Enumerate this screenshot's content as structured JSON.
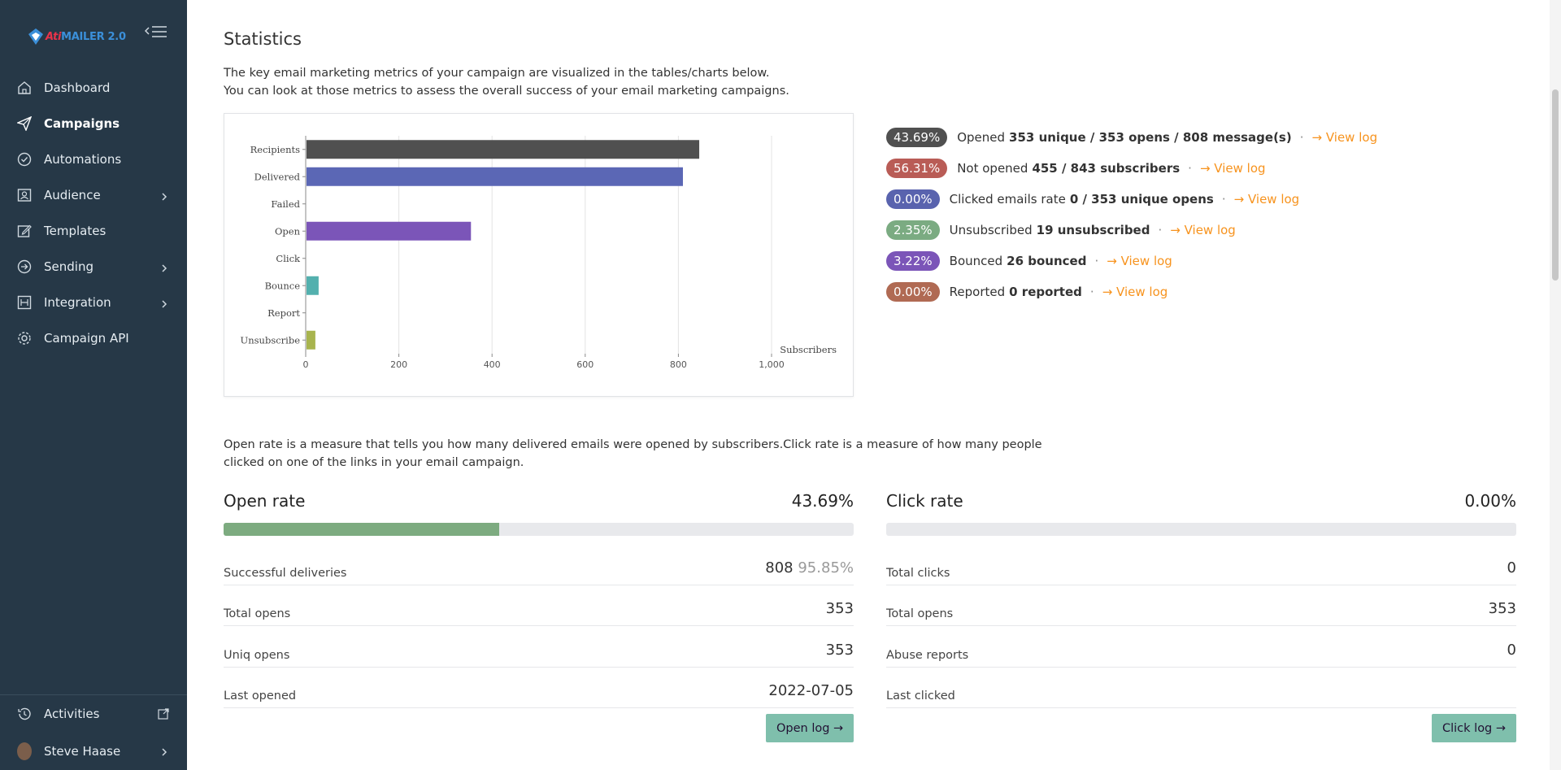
{
  "app": {
    "logo_part1": "Ati",
    "logo_part2": "MAILER 2.0"
  },
  "sidebar": {
    "items": [
      {
        "label": "Dashboard",
        "icon": "home-icon"
      },
      {
        "label": "Campaigns",
        "icon": "paper-plane-icon",
        "active": true
      },
      {
        "label": "Automations",
        "icon": "clock-check-icon"
      },
      {
        "label": "Audience",
        "icon": "audience-icon",
        "has_submenu": true
      },
      {
        "label": "Templates",
        "icon": "edit-icon"
      },
      {
        "label": "Sending",
        "icon": "sending-icon",
        "has_submenu": true
      },
      {
        "label": "Integration",
        "icon": "integration-icon",
        "has_submenu": true
      },
      {
        "label": "Campaign API",
        "icon": "api-gear-icon"
      }
    ],
    "bottom": {
      "activities_label": "Activities",
      "user_name": "Steve Haase"
    }
  },
  "page": {
    "title": "Statistics",
    "intro_line1": "The key email marketing metrics of your campaign are visualized in the tables/charts below.",
    "intro_line2": "You can look at those metrics to assess the overall success of your email marketing campaigns.",
    "rate_desc_line1": "Open rate is a measure that tells you how many delivered emails were opened by subscribers.Click rate is a measure of how many people",
    "rate_desc_line2": "clicked on one of the links in your email campaign."
  },
  "metrics": [
    {
      "pct": "43.69%",
      "color": "#505050",
      "label": "Opened",
      "value": "353 unique / 353 opens / 808 message(s)",
      "link": "View log"
    },
    {
      "pct": "56.31%",
      "color": "#b95c56",
      "label": "Not opened",
      "value": "455 / 843 subscribers",
      "link": "View log"
    },
    {
      "pct": "0.00%",
      "color": "#5963ae",
      "label": "Clicked emails rate",
      "value": "0 / 353 unique opens",
      "link": "View log"
    },
    {
      "pct": "2.35%",
      "color": "#7bab82",
      "label": "Unsubscribed",
      "value": "19 unsubscribed",
      "link": "View log"
    },
    {
      "pct": "3.22%",
      "color": "#7b55b8",
      "label": "Bounced",
      "value": "26 bounced",
      "link": "View log"
    },
    {
      "pct": "0.00%",
      "color": "#b06a53",
      "label": "Reported",
      "value": "0 reported",
      "link": "View log"
    }
  ],
  "chart_data": {
    "type": "bar",
    "orientation": "horizontal",
    "categories": [
      "Recipients",
      "Delivered",
      "Failed",
      "Open",
      "Click",
      "Bounce",
      "Report",
      "Unsubscribe"
    ],
    "values": [
      843,
      808,
      0,
      353,
      0,
      26,
      0,
      19
    ],
    "colors": [
      "#505050",
      "#5b67b5",
      "#b95c56",
      "#7b55b8",
      "#5b67b5",
      "#53b0ae",
      "#b06a53",
      "#a8b44e"
    ],
    "xlabel": "Subscribers",
    "xticks": [
      "0",
      "200",
      "400",
      "600",
      "800",
      "1,000"
    ],
    "xlim": [
      0,
      1000
    ],
    "grid": true
  },
  "open_rate": {
    "title": "Open rate",
    "value": "43.69%",
    "fraction": 0.4369,
    "rows": [
      {
        "label": "Successful deliveries",
        "value": "808",
        "sub": "95.85%"
      },
      {
        "label": "Total opens",
        "value": "353",
        "sub": ""
      },
      {
        "label": "Uniq opens",
        "value": "353",
        "sub": ""
      },
      {
        "label": "Last opened",
        "value": "2022-07-05",
        "sub": ""
      }
    ],
    "button": "Open log →"
  },
  "click_rate": {
    "title": "Click rate",
    "value": "0.00%",
    "fraction": 0,
    "rows": [
      {
        "label": "Total clicks",
        "value": "0",
        "sub": ""
      },
      {
        "label": "Total opens",
        "value": "353",
        "sub": ""
      },
      {
        "label": "Abuse reports",
        "value": "0",
        "sub": ""
      },
      {
        "label": "Last clicked",
        "value": "",
        "sub": ""
      }
    ],
    "button": "Click log →"
  }
}
